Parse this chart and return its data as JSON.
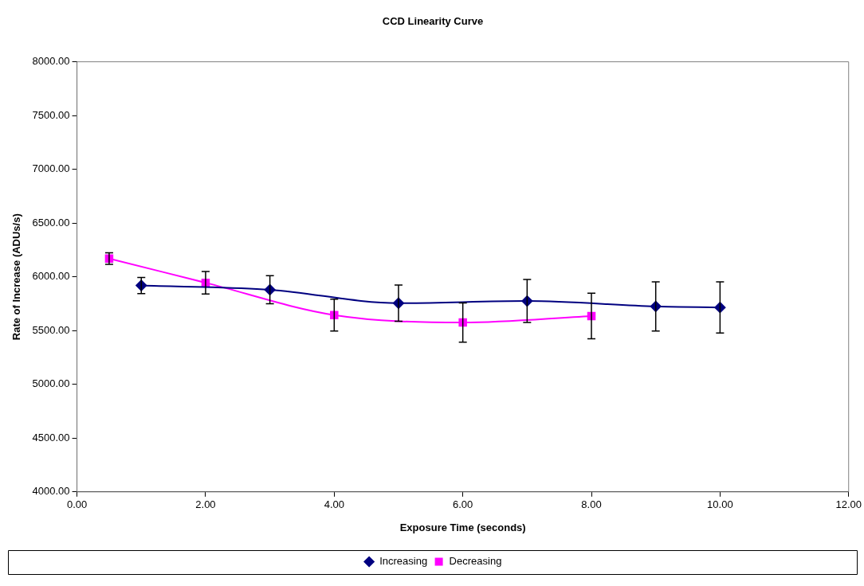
{
  "chart_data": {
    "type": "line",
    "title": "CCD Linearity Curve",
    "xlabel": "Exposure Time (seconds)",
    "ylabel": "Rate of Increase (ADUs/s)",
    "xlim": [
      0,
      12
    ],
    "xticks": [
      {
        "value": 0,
        "label": "0.00"
      },
      {
        "value": 2,
        "label": "2.00"
      },
      {
        "value": 4,
        "label": "4.00"
      },
      {
        "value": 6,
        "label": "6.00"
      },
      {
        "value": 8,
        "label": "8.00"
      },
      {
        "value": 10,
        "label": "10.00"
      },
      {
        "value": 12,
        "label": "12.00"
      }
    ],
    "ylim": [
      4000,
      8000
    ],
    "yticks": [
      {
        "value": 4000,
        "label": "4000.00"
      },
      {
        "value": 4500,
        "label": "4500.00"
      },
      {
        "value": 5000,
        "label": "5000.00"
      },
      {
        "value": 5500,
        "label": "5500.00"
      },
      {
        "value": 6000,
        "label": "6000.00"
      },
      {
        "value": 6500,
        "label": "6500.00"
      },
      {
        "value": 7000,
        "label": "7000.00"
      },
      {
        "value": 7500,
        "label": "7500.00"
      },
      {
        "value": 8000,
        "label": "8000.00"
      }
    ],
    "grid": false,
    "legend": "bottom",
    "series": [
      {
        "name": "Increasing",
        "color": "#000080",
        "marker": "diamond",
        "x": [
          1,
          3,
          5,
          7,
          9,
          10
        ],
        "values": [
          5920,
          5880,
          5755,
          5775,
          5725,
          5715
        ],
        "errors": [
          75,
          130,
          168,
          200,
          228,
          238
        ]
      },
      {
        "name": "Decreasing",
        "color": "#ff00ff",
        "marker": "square",
        "x": [
          0.5,
          2,
          4,
          6,
          8
        ],
        "values": [
          6170,
          5945,
          5645,
          5575,
          5635
        ],
        "errors": [
          53,
          105,
          148,
          183,
          212
        ]
      }
    ]
  }
}
